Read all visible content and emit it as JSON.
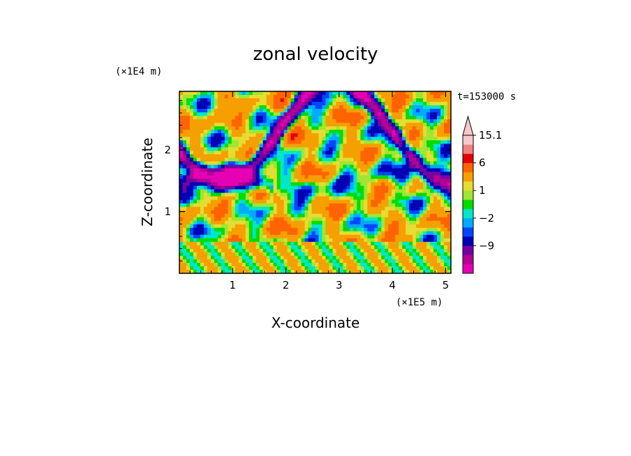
{
  "chart_data": {
    "type": "heatmap",
    "title": "zonal velocity",
    "time_label": "t=153000 s",
    "xlabel": "X-coordinate",
    "ylabel": "Z-coordinate",
    "x_scale_label": "(×1E5 m)",
    "y_scale_label": "(×1E4 m)",
    "xlim": [
      0,
      5.1
    ],
    "ylim": [
      0,
      2.95
    ],
    "x_ticks": [
      {
        "value": 1,
        "label": "1"
      },
      {
        "value": 2,
        "label": "2"
      },
      {
        "value": 3,
        "label": "3"
      },
      {
        "value": 4,
        "label": "4"
      },
      {
        "value": 5,
        "label": "5"
      }
    ],
    "y_ticks": [
      {
        "value": 1,
        "label": "1"
      },
      {
        "value": 2,
        "label": "2"
      }
    ],
    "colorbar": {
      "levels": [
        -15,
        -12,
        -9,
        -6,
        -3,
        -2,
        -1,
        0,
        1,
        2,
        3,
        6,
        9,
        12,
        15.1
      ],
      "colors": [
        "#e600b4",
        "#b40096",
        "#7800a0",
        "#0000b4",
        "#0046ff",
        "#00aaff",
        "#00e6c8",
        "#00dc00",
        "#a0e632",
        "#e6dc32",
        "#f5a000",
        "#ff6400",
        "#e60000",
        "#f08282",
        "#fac8c8"
      ],
      "tick_labels": [
        {
          "value": 15.1,
          "label": "15.1"
        },
        {
          "value": 6,
          "label": "6"
        },
        {
          "value": 1,
          "label": "1"
        },
        {
          "value": -2,
          "label": "−2"
        },
        {
          "value": -9,
          "label": "−9"
        }
      ]
    }
  }
}
